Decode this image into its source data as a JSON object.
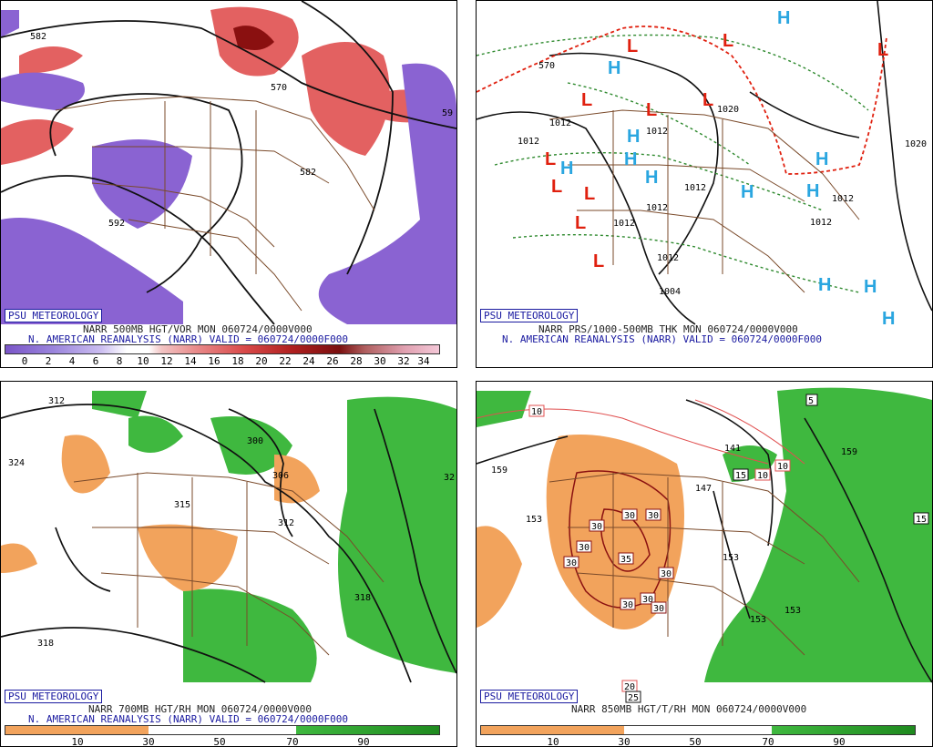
{
  "panels": [
    {
      "id": "tl",
      "badge": "PSU METEOROLOGY",
      "title": "NARR 500MB HGT/VOR MON 060724/0000V000",
      "subtitle": "N. AMERICAN REANALYSIS (NARR) VALID = 060724/0000F000",
      "contours": [
        "582",
        "570",
        "592",
        "582",
        "59"
      ],
      "colorbar_ticks": [
        "0",
        "2",
        "4",
        "6",
        "8",
        "10",
        "12",
        "14",
        "16",
        "18",
        "20",
        "22",
        "24",
        "26",
        "28",
        "30",
        "32",
        "34"
      ]
    },
    {
      "id": "tr",
      "badge": "PSU METEOROLOGY",
      "title": "NARR PRS/1000-500MB THK MON 060724/0000V000",
      "subtitle": "N. AMERICAN REANALYSIS (NARR) VALID = 060724/0000F000",
      "contours": [
        "1020",
        "1012",
        "1012",
        "1012",
        "1012",
        "1012",
        "1012",
        "1012",
        "1012",
        "1012",
        "1004",
        "1020",
        "570"
      ],
      "highs": [
        "H",
        "H",
        "H",
        "H",
        "H",
        "H",
        "H",
        "H",
        "H",
        "H",
        "H",
        "H"
      ],
      "lows": [
        "L",
        "L",
        "L",
        "L",
        "L",
        "L",
        "L",
        "L",
        "L",
        "L",
        "L"
      ]
    },
    {
      "id": "bl",
      "badge": "PSU METEOROLOGY",
      "title": "NARR 700MB HGT/RH MON 060724/0000V000",
      "subtitle": "N. AMERICAN REANALYSIS (NARR) VALID = 060724/0000F000",
      "contours": [
        "312",
        "324",
        "300",
        "306",
        "315",
        "312",
        "318",
        "318",
        "32"
      ],
      "colorbar_ticks": [
        "10",
        "30",
        "50",
        "70",
        "90"
      ]
    },
    {
      "id": "br",
      "badge": "PSU METEOROLOGY",
      "title": "NARR 850MB HGT/T/RH MON 060724/0000V000",
      "subtitle": "",
      "contours": [
        "159",
        "153",
        "147",
        "141",
        "153",
        "153",
        "153",
        "159",
        "15"
      ],
      "temps": [
        "30",
        "30",
        "30",
        "30",
        "35",
        "30",
        "30",
        "30",
        "30",
        "30",
        "10",
        "10",
        "10",
        "15",
        "15",
        "5",
        "20",
        "25"
      ],
      "colorbar_ticks": [
        "10",
        "30",
        "50",
        "70",
        "90"
      ]
    }
  ],
  "colors": {
    "vor_neg": "#8a63d2",
    "vor_pos": "#e03a3a",
    "dry": "#f2a35c",
    "moist": "#3fb83f",
    "low": "#e0200f",
    "high": "#2aa6e0",
    "border": "#7a4a2a",
    "text_blue": "#1a1aa0"
  }
}
